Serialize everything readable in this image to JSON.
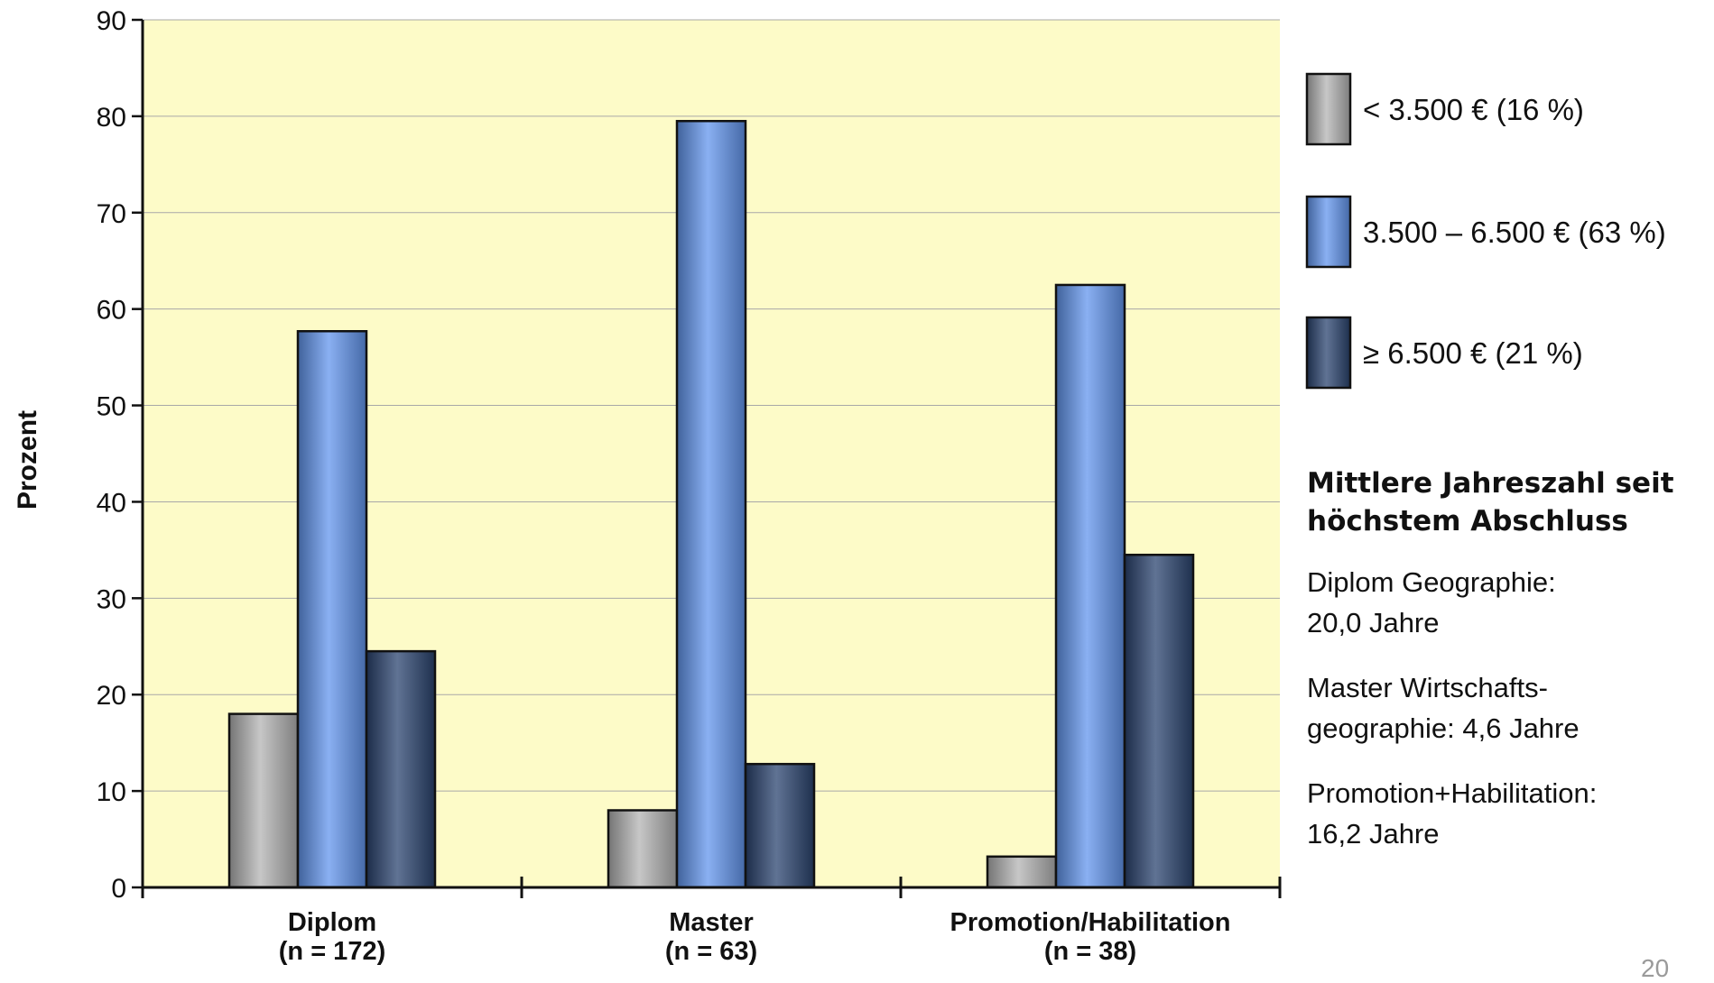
{
  "chart_data": {
    "type": "bar",
    "ylabel": "Prozent",
    "ylim": [
      0,
      90
    ],
    "yticks": [
      "0",
      "10",
      "20",
      "30",
      "40",
      "50",
      "60",
      "70",
      "80",
      "90"
    ],
    "categories": [
      {
        "name": "Diplom",
        "n": "(n = 172)"
      },
      {
        "name": "Master",
        "n": "(n = 63)"
      },
      {
        "name": "Promotion/Habilitation",
        "n": "(n = 38)"
      }
    ],
    "series": [
      {
        "name": "< 3.500 € (16 %)",
        "color": "#b4b4b4",
        "values": [
          18,
          8,
          3.2
        ]
      },
      {
        "name": "3.500 – 6.500 € (63 %)",
        "color": "#6396ee",
        "values": [
          57.7,
          79.5,
          62.5
        ]
      },
      {
        "name": "≥ 6.500 € (21 %)",
        "color": "#2b4470",
        "values": [
          24.5,
          12.8,
          34.5
        ]
      }
    ],
    "plot_background": "#fdfbc8",
    "grid": true,
    "legend_position": "right"
  },
  "side_panel": {
    "heading": "Mittlere Jahreszahl seit höchstem Abschluss",
    "notes": [
      {
        "line1": "Diplom Geographie:",
        "line2": "20,0 Jahre"
      },
      {
        "line1": "Master Wirtschafts-",
        "line2": "geographie: 4,6 Jahre"
      },
      {
        "line1": "Promotion+Habilitation:",
        "line2": "16,2 Jahre"
      }
    ]
  },
  "page_number": "20"
}
